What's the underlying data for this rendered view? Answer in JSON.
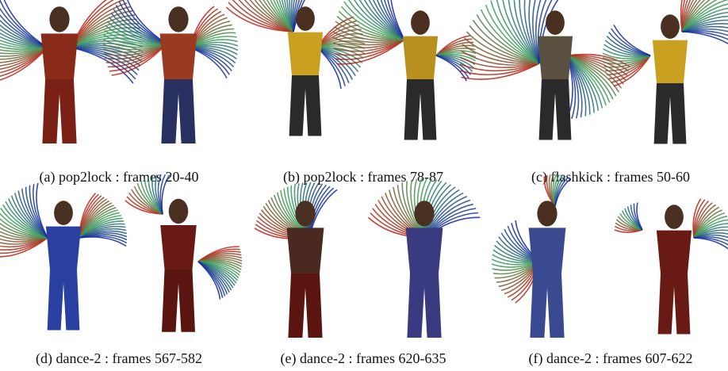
{
  "captions": [
    "(a) pop2lock : frames 20-40",
    "(b) pop2lock : frames 78-87",
    "(c) flashkick : frames 50-60",
    "(d) dance-2 : frames 567-582",
    "(e) dance-2 : frames 620-635",
    "(f) dance-2 : frames 607-622"
  ]
}
